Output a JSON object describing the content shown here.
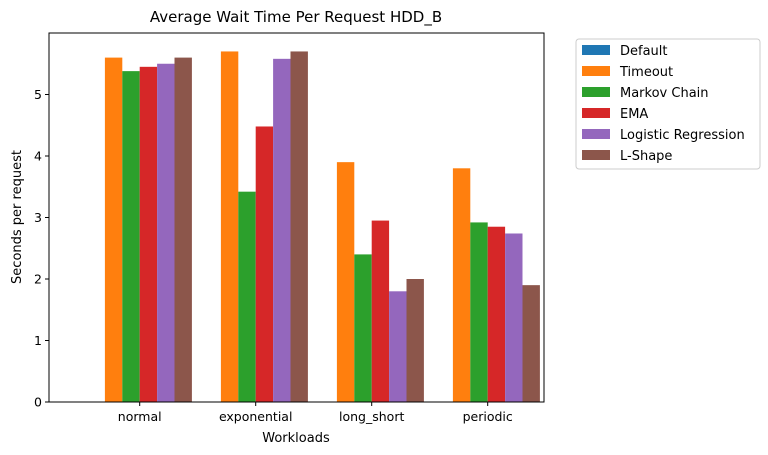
{
  "chart_data": {
    "type": "bar",
    "title": "Average Wait Time Per Request HDD_B",
    "xlabel": "Workloads",
    "ylabel": "Seconds per request",
    "categories": [
      "normal",
      "exponential",
      "long_short",
      "periodic"
    ],
    "ylim": [
      0,
      6
    ],
    "yticks": [
      0,
      1,
      2,
      3,
      4,
      5
    ],
    "grid": false,
    "legend_position": "outside-right",
    "series": [
      {
        "name": "Default",
        "color": "#1f77b4",
        "values": [
          0,
          0,
          0,
          0
        ]
      },
      {
        "name": "Timeout",
        "color": "#ff7f0e",
        "values": [
          5.6,
          5.7,
          3.9,
          3.8
        ]
      },
      {
        "name": "Markov Chain",
        "color": "#2ca02c",
        "values": [
          5.38,
          3.42,
          2.4,
          2.92
        ]
      },
      {
        "name": "EMA",
        "color": "#d62728",
        "values": [
          5.45,
          4.48,
          2.95,
          2.85
        ]
      },
      {
        "name": "Logistic Regression",
        "color": "#9467bd",
        "values": [
          5.5,
          5.58,
          1.8,
          2.74
        ]
      },
      {
        "name": "L-Shape",
        "color": "#8c564b",
        "values": [
          5.6,
          5.7,
          2.0,
          1.9
        ]
      }
    ]
  }
}
